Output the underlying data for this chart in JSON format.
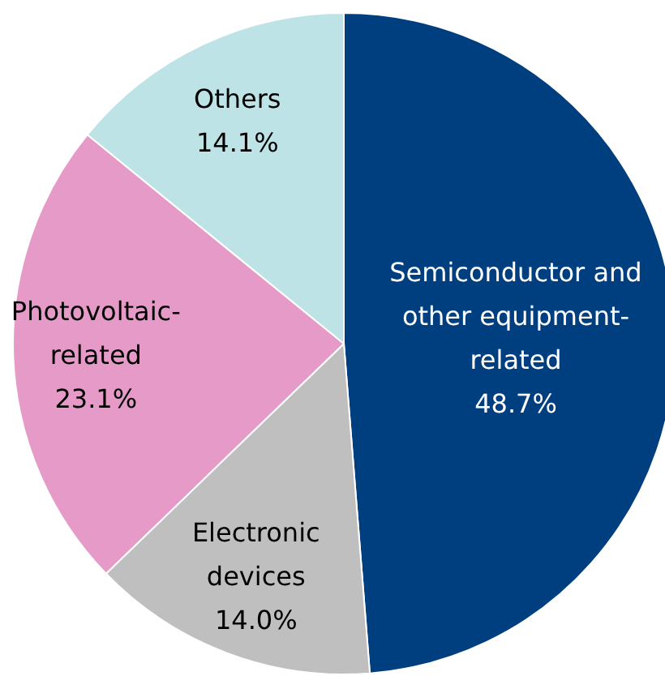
{
  "chart_data": {
    "type": "pie",
    "categories": [
      "Semiconductor and\nother equipment-\nrelated",
      "Electronic\ndevices",
      "Photovoltaic-\nrelated",
      "Others"
    ],
    "values": [
      48.7,
      14.0,
      23.1,
      14.1
    ],
    "colors": [
      "#003f7f",
      "#bfbfbf",
      "#e59ac8",
      "#bde3e6"
    ],
    "value_labels": [
      "48.7%",
      "14.0%",
      "23.1%",
      "14.1%"
    ]
  }
}
